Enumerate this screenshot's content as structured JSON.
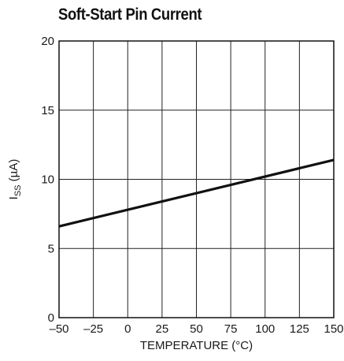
{
  "chart_data": {
    "type": "line",
    "title": "Soft-Start Pin Current",
    "xlabel": "TEMPERATURE (°C)",
    "ylabel": {
      "main": "I",
      "subscript": "SS",
      "unit": " (µA)"
    },
    "xlim": [
      -50,
      150
    ],
    "ylim": [
      0,
      20
    ],
    "xticks": [
      -50,
      -25,
      0,
      25,
      50,
      75,
      100,
      125,
      150
    ],
    "xtick_labels": [
      "–50",
      "–25",
      "0",
      "25",
      "50",
      "75",
      "100",
      "125",
      "150"
    ],
    "yticks": [
      0,
      5,
      10,
      15,
      20
    ],
    "ytick_labels": [
      "0",
      "5",
      "10",
      "15",
      "20"
    ],
    "grid": true,
    "series": [
      {
        "x": [
          -50,
          150
        ],
        "y": [
          6.6,
          11.4
        ]
      }
    ],
    "colors": {
      "line": "#111111",
      "grid": "#222222",
      "frame": "#111111"
    }
  }
}
